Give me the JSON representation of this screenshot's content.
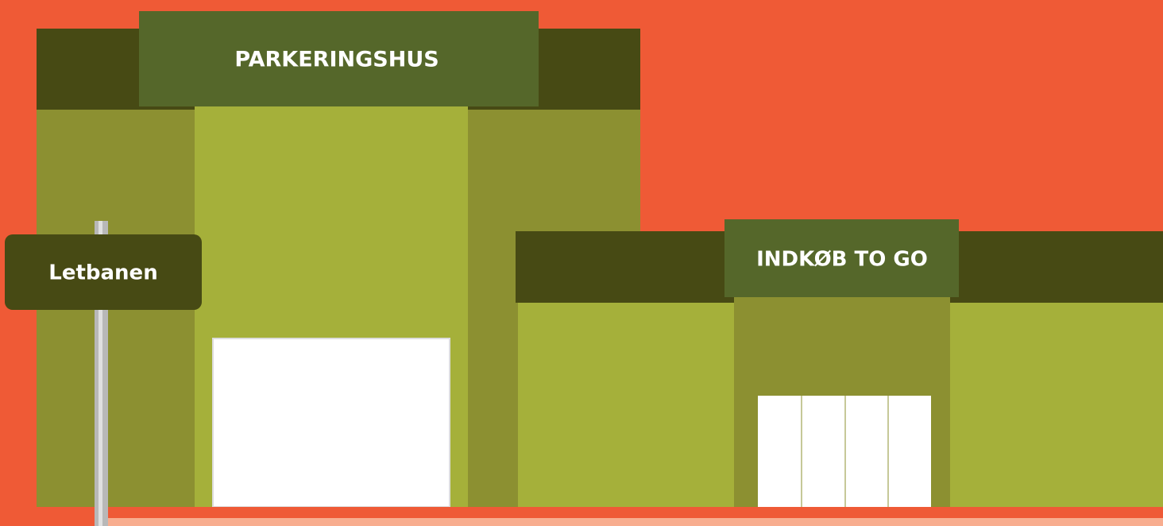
{
  "signs": {
    "parking": "PARKERINGSHUS",
    "shop": "INDKØB TO GO",
    "tram": "Letbanen"
  }
}
